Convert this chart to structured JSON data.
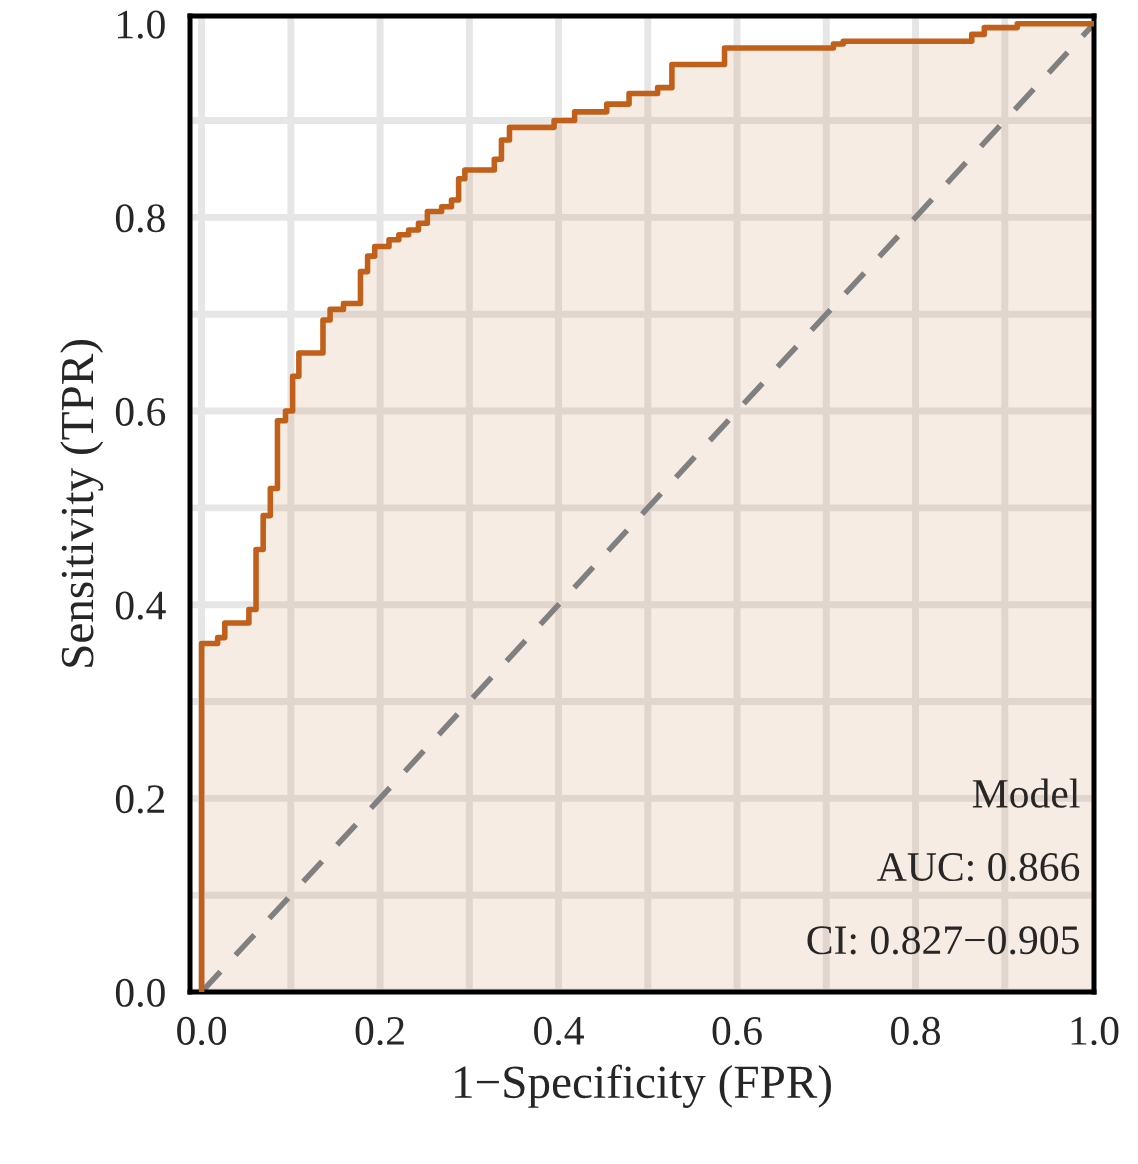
{
  "chart_data": {
    "type": "step",
    "xlabel": "1−Specificity (FPR)",
    "ylabel": "Sensitivity (TPR)",
    "xlim": [
      -0.013,
      1.0
    ],
    "ylim": [
      0,
      1.008
    ],
    "xticks": [
      {
        "value": 0,
        "label": "0.0"
      },
      {
        "value": 0.2,
        "label": "0.2"
      },
      {
        "value": 0.4,
        "label": "0.4"
      },
      {
        "value": 0.6,
        "label": "0.6"
      },
      {
        "value": 0.8,
        "label": "0.8"
      },
      {
        "value": 1.0,
        "label": "1.0"
      }
    ],
    "yticks": [
      {
        "value": 0,
        "label": "0.0"
      },
      {
        "value": 0.2,
        "label": "0.2"
      },
      {
        "value": 0.4,
        "label": "0.4"
      },
      {
        "value": 0.6,
        "label": "0.6"
      },
      {
        "value": 0.8,
        "label": "0.8"
      },
      {
        "value": 1.0,
        "label": "1.0"
      }
    ],
    "grid": true,
    "series": [
      {
        "color": "#c0601a",
        "x": [
          0.0,
          0.0,
          0.018,
          0.026,
          0.053,
          0.061,
          0.069,
          0.077,
          0.085,
          0.094,
          0.102,
          0.109,
          0.136,
          0.144,
          0.159,
          0.178,
          0.186,
          0.194,
          0.21,
          0.221,
          0.232,
          0.243,
          0.253,
          0.269,
          0.28,
          0.288,
          0.295,
          0.328,
          0.336,
          0.345,
          0.395,
          0.418,
          0.454,
          0.479,
          0.511,
          0.527,
          0.586,
          0.708,
          0.719,
          0.863,
          0.877,
          0.914,
          1.0
        ],
        "values": [
          0.0,
          0.36,
          0.366,
          0.381,
          0.395,
          0.457,
          0.492,
          0.52,
          0.59,
          0.6,
          0.636,
          0.66,
          0.694,
          0.705,
          0.711,
          0.744,
          0.76,
          0.77,
          0.777,
          0.782,
          0.787,
          0.794,
          0.806,
          0.811,
          0.818,
          0.84,
          0.849,
          0.86,
          0.88,
          0.893,
          0.9,
          0.909,
          0.917,
          0.928,
          0.934,
          0.958,
          0.975,
          0.979,
          0.982,
          0.989,
          0.996,
          1.0,
          1.0
        ]
      },
      {
        "type": "line",
        "color": "#808080",
        "line_style": "dashed",
        "x": [
          0,
          1
        ],
        "values": [
          0,
          1
        ]
      }
    ],
    "annotations": [
      "Model",
      "AUC: 0.866",
      "CI: 0.827−0.905"
    ]
  }
}
